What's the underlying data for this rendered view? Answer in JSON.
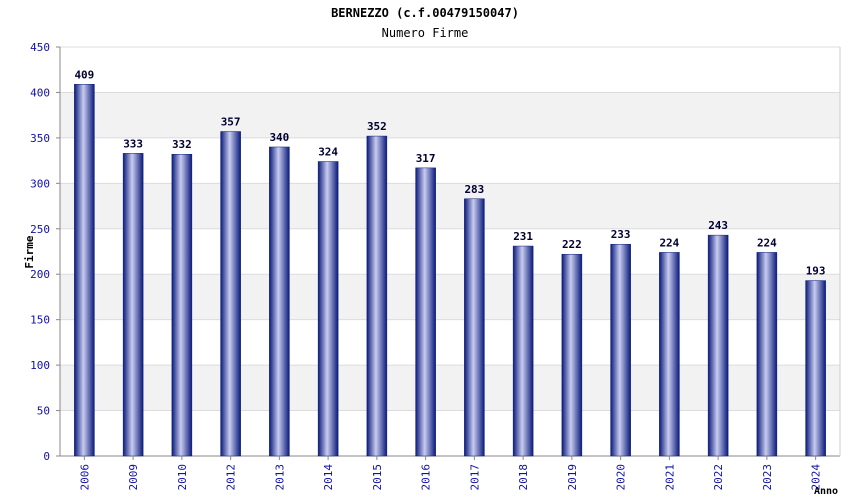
{
  "chart_data": {
    "type": "bar",
    "title": "BERNEZZO (c.f.00479150047)",
    "subtitle": "Numero Firme",
    "xlabel": "Anno",
    "ylabel": "Firme",
    "categories": [
      "2006",
      "2009",
      "2010",
      "2012",
      "2013",
      "2014",
      "2015",
      "2016",
      "2017",
      "2018",
      "2019",
      "2020",
      "2021",
      "2022",
      "2023",
      "2024"
    ],
    "values": [
      409,
      333,
      332,
      357,
      340,
      324,
      352,
      317,
      283,
      231,
      222,
      233,
      224,
      243,
      224,
      193
    ],
    "ylim": [
      0,
      450
    ],
    "yticks": [
      0,
      50,
      100,
      150,
      200,
      250,
      300,
      350,
      400,
      450
    ],
    "grid": true,
    "colors": {
      "bar_dark": "#0a1a7a",
      "bar_light": "#c8ccf0",
      "tick_label": "#1010aa",
      "value_label": "#000033",
      "band": "#f2f2f2"
    }
  }
}
